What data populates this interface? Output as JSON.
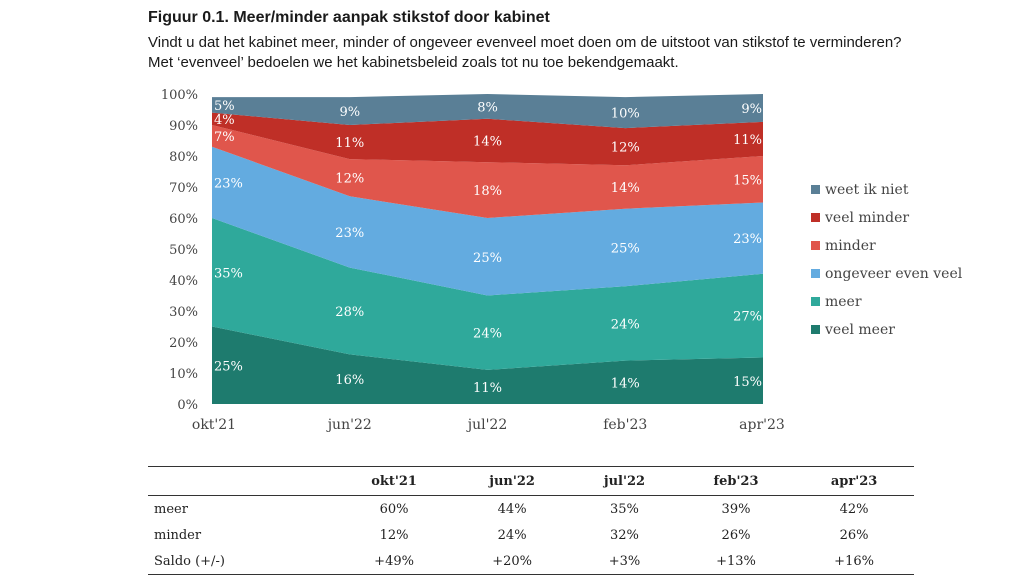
{
  "figure": {
    "title": "Figuur 0.1. Meer/minder aanpak stikstof door kabinet",
    "subtitle": "Vindt u dat het kabinet meer, minder of ongeveer evenveel moet doen om de uitstoot van stikstof te verminderen? Met ‘evenveel’ bedoelen we het kabinetsbeleid zoals tot nu toe bekendgemaakt."
  },
  "chart_data": {
    "type": "area",
    "stacked": true,
    "title": "Meer/minder aanpak stikstof door kabinet",
    "xlabel": "",
    "ylabel": "",
    "ylim": [
      0,
      100
    ],
    "y_ticks": [
      "0%",
      "10%",
      "20%",
      "30%",
      "40%",
      "50%",
      "60%",
      "70%",
      "80%",
      "90%",
      "100%"
    ],
    "categories": [
      "okt'21",
      "jun'22",
      "jul'22",
      "feb'23",
      "apr'23"
    ],
    "legend_position": "right",
    "series": [
      {
        "name": "veel meer",
        "color": "#1e7b6e",
        "values": [
          25,
          16,
          11,
          14,
          15
        ],
        "labels": [
          "25%",
          "16%",
          "11%",
          "14%",
          "15%"
        ]
      },
      {
        "name": "meer",
        "color": "#2fa99b",
        "values": [
          35,
          28,
          24,
          24,
          27
        ],
        "labels": [
          "35%",
          "28%",
          "24%",
          "24%",
          "27%"
        ]
      },
      {
        "name": "ongeveer even veel",
        "color": "#63abe0",
        "values": [
          23,
          23,
          25,
          25,
          23
        ],
        "labels": [
          "23%",
          "23%",
          "25%",
          "25%",
          "23%"
        ]
      },
      {
        "name": "minder",
        "color": "#e0564c",
        "values": [
          7,
          12,
          18,
          14,
          15
        ],
        "labels": [
          "7%",
          "12%",
          "18%",
          "14%",
          "15%"
        ]
      },
      {
        "name": "veel minder",
        "color": "#bf2f27",
        "values": [
          4,
          11,
          14,
          12,
          11
        ],
        "labels": [
          "4%",
          "11%",
          "14%",
          "12%",
          "11%"
        ]
      },
      {
        "name": "weet ik niet",
        "color": "#5a7f96",
        "values": [
          5,
          9,
          8,
          10,
          9
        ],
        "labels": [
          "5%",
          "9%",
          "8%",
          "10%",
          "9%"
        ]
      }
    ]
  },
  "table": {
    "headers": [
      "",
      "okt'21",
      "jun'22",
      "jul'22",
      "feb'23",
      "apr'23"
    ],
    "rows": [
      {
        "label": "meer",
        "values": [
          "60%",
          "44%",
          "35%",
          "39%",
          "42%"
        ]
      },
      {
        "label": "minder",
        "values": [
          "12%",
          "24%",
          "32%",
          "26%",
          "26%"
        ]
      },
      {
        "label": "Saldo (+/-)",
        "values": [
          "+49%",
          "+20%",
          "+3%",
          "+13%",
          "+16%"
        ]
      }
    ]
  }
}
